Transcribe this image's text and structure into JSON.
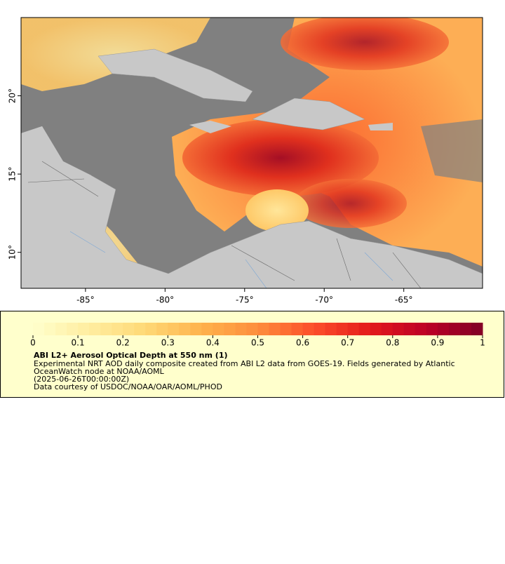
{
  "map": {
    "xlim": [
      -89.05,
      -60.05
    ],
    "ylim": [
      7.7,
      25.0
    ],
    "xticks": [
      {
        "value": -85,
        "label": "-85°"
      },
      {
        "value": -80,
        "label": "-80°"
      },
      {
        "value": -75,
        "label": "-75°"
      },
      {
        "value": -70,
        "label": "-70°"
      },
      {
        "value": -65,
        "label": "-65°"
      }
    ],
    "yticks": [
      {
        "value": 10,
        "label": "10°"
      },
      {
        "value": 15,
        "label": "15°"
      },
      {
        "value": 20,
        "label": "20°"
      }
    ]
  },
  "colorbar": {
    "clim": [
      0,
      1
    ],
    "ticks": [
      0,
      0.1,
      0.2,
      0.3,
      0.4,
      0.5,
      0.6,
      0.7,
      0.8,
      0.9,
      1
    ],
    "colormap": [
      "#ffffcc",
      "#ffeda0",
      "#fed976",
      "#feb24c",
      "#fd8d3c",
      "#fc4e2a",
      "#e31a1c",
      "#bd0026",
      "#800026"
    ],
    "title": "ABI L2+ Aerosol Optical Depth at 550 nm (1)",
    "description": [
      "Experimental NRT AOD daily composite created from ABI L2 data from GOES-19. Fields generated by Atlantic",
      "OceanWatch node at NOAA/AOML",
      "(2025-06-26T00:00:00Z)",
      "Data courtesy of USDOC/NOAA/OAR/AOML/PHOD"
    ]
  }
}
